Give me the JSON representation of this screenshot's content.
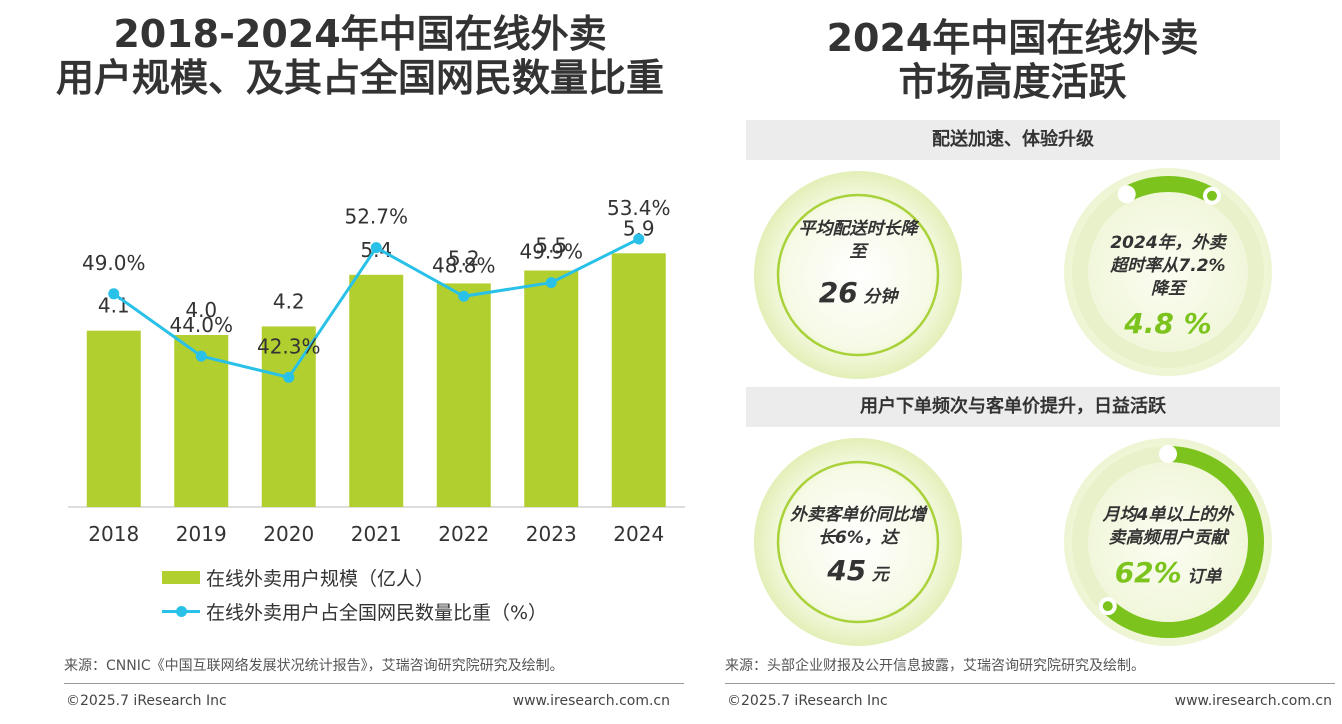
{
  "left_title_line1": "2018-2024年中国在线外卖",
  "left_title_line2": "用户规模、及其占全国网民数量比重",
  "right_title_line1": "2024年中国在线外卖",
  "right_title_line2": "市场高度活跃",
  "chart_data": {
    "type": "bar",
    "categories": [
      "2018",
      "2019",
      "2020",
      "2021",
      "2022",
      "2023",
      "2024"
    ],
    "series": [
      {
        "name": "在线外卖用户规模（亿人）",
        "type": "bar",
        "values": [
          4.1,
          4.0,
          4.2,
          5.4,
          5.2,
          5.5,
          5.9
        ],
        "labels": [
          "4.1",
          "4.0",
          "4.2",
          "5.4",
          "5.2",
          "5.5",
          "5.9"
        ],
        "color": "#b1cf2f"
      },
      {
        "name": "在线外卖用户占全国网民数量比重（%）",
        "type": "line",
        "values": [
          49.0,
          44.0,
          42.3,
          52.7,
          48.8,
          49.9,
          53.4
        ],
        "labels": [
          "49.0%",
          "44.0%",
          "42.3%",
          "52.7%",
          "48.8%",
          "49.9%",
          "53.4%"
        ],
        "color": "#29c1e8"
      }
    ],
    "legend_position": "bottom-left",
    "grid": false
  },
  "left_source": "来源：CNNIC《中国互联网络发展状况统计报告》，艾瑞咨询研究院研究及绘制。",
  "right_source": "来源：头部企业财报及公开信息披露，艾瑞咨询研究院研究及绘制。",
  "copyright_left": "©2025.7 iResearch Inc",
  "website_left": "www.iresearch.com.cn",
  "copyright_right": "©2025.7 iResearch Inc",
  "website_right": "www.iresearch.com.cn",
  "section1": {
    "heading": "配送加速、体验升级",
    "card1": {
      "line1": "平均配送时长降",
      "line2": "至",
      "value": "26",
      "unit": "分钟"
    },
    "card2": {
      "line1": "2024年，外卖",
      "line2": "超时率从7.2%",
      "line3": "降至",
      "value": "4.8 %"
    }
  },
  "section2": {
    "heading": "用户下单频次与客单价提升，日益活跃",
    "card3": {
      "line1": "外卖客单价同比增",
      "line2": "长6%，达",
      "value": "45",
      "unit": "元",
      "ring_fraction": 0.06
    },
    "card4": {
      "line1": "月均4单以上的外",
      "line2": "卖高频用户贡献",
      "value": "62%",
      "unit": "订单",
      "ring_fraction": 0.62
    }
  },
  "colors": {
    "bar": "#b1cf2f",
    "line": "#29c1e8",
    "accent_green": "#7cc41d",
    "band": "#ececec"
  }
}
